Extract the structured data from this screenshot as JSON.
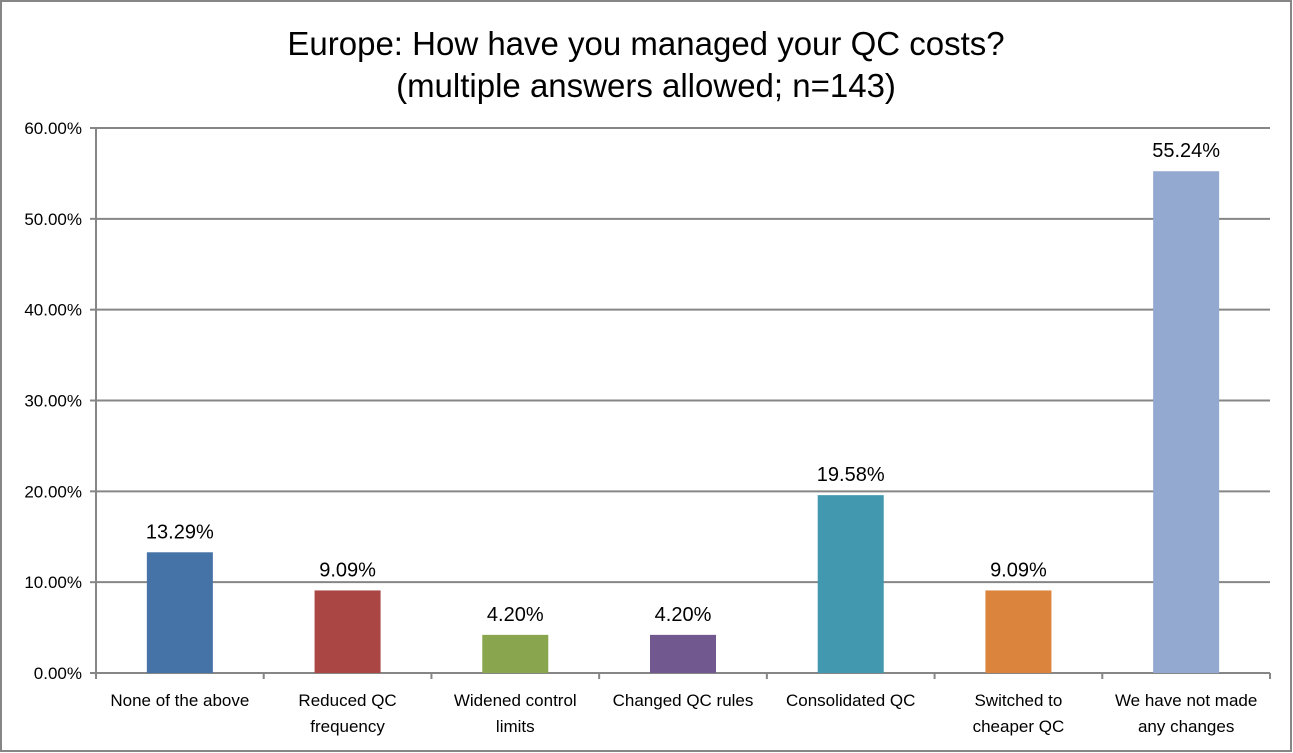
{
  "chart_data": {
    "type": "bar",
    "title": "Europe: How have you managed your QC costs?",
    "subtitle": "(multiple answers allowed; n=143)",
    "categories": [
      [
        "None of the above"
      ],
      [
        "Reduced QC",
        "frequency"
      ],
      [
        "Widened control",
        "limits"
      ],
      [
        "Changed QC rules"
      ],
      [
        "Consolidated QC"
      ],
      [
        "Switched to",
        "cheaper QC"
      ],
      [
        "We have not made",
        "any changes"
      ]
    ],
    "values": [
      13.29,
      9.09,
      4.2,
      4.2,
      19.58,
      9.09,
      55.24
    ],
    "data_labels": [
      "13.29%",
      "9.09%",
      "4.20%",
      "4.20%",
      "19.58%",
      "9.09%",
      "55.24%"
    ],
    "colors": [
      "#4572A7",
      "#AA4643",
      "#89A54E",
      "#71588F",
      "#4198AF",
      "#DB843D",
      "#93A9CF"
    ],
    "yticks": [
      "0.00%",
      "10.00%",
      "20.00%",
      "30.00%",
      "40.00%",
      "50.00%",
      "60.00%"
    ],
    "ylim": [
      0,
      60
    ],
    "grid": true,
    "legend": "none",
    "xlabel": "",
    "ylabel": ""
  }
}
